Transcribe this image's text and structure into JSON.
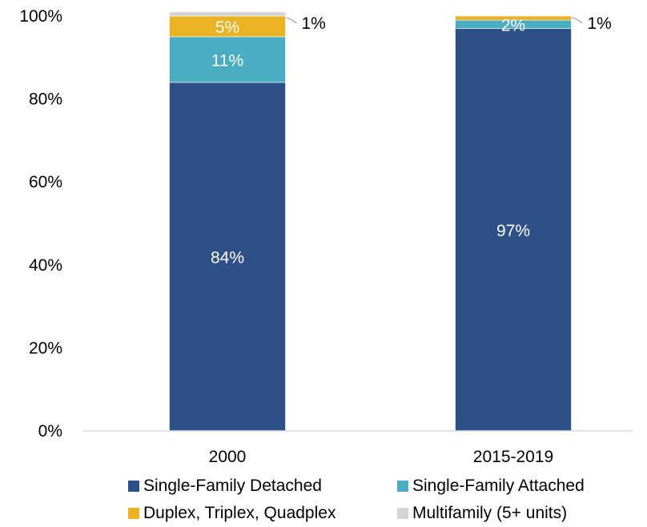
{
  "chart_data": {
    "type": "bar",
    "stacked": true,
    "categories": [
      "2000",
      "2015-2019"
    ],
    "series": [
      {
        "name": "Single-Family Detached",
        "color": "#2e5089",
        "values": [
          84,
          97
        ],
        "labels": [
          "84%",
          "97%"
        ]
      },
      {
        "name": "Single-Family Attached",
        "color": "#4aacc1",
        "values": [
          11,
          2
        ],
        "labels": [
          "11%",
          "2%"
        ]
      },
      {
        "name": "Duplex, Triplex, Quadplex",
        "color": "#e9b324",
        "values": [
          5,
          1
        ],
        "labels": [
          "5%",
          ""
        ]
      },
      {
        "name": "Multifamily (5+ units)",
        "color": "#d3d3d3",
        "values": [
          1,
          0
        ],
        "labels": [
          "",
          ""
        ]
      }
    ],
    "callouts": [
      "1%",
      "1%"
    ],
    "y_ticks": [
      "0%",
      "20%",
      "40%",
      "60%",
      "80%",
      "100%"
    ],
    "ylim": [
      0,
      100
    ],
    "grid": false,
    "legend_position": "bottom"
  }
}
